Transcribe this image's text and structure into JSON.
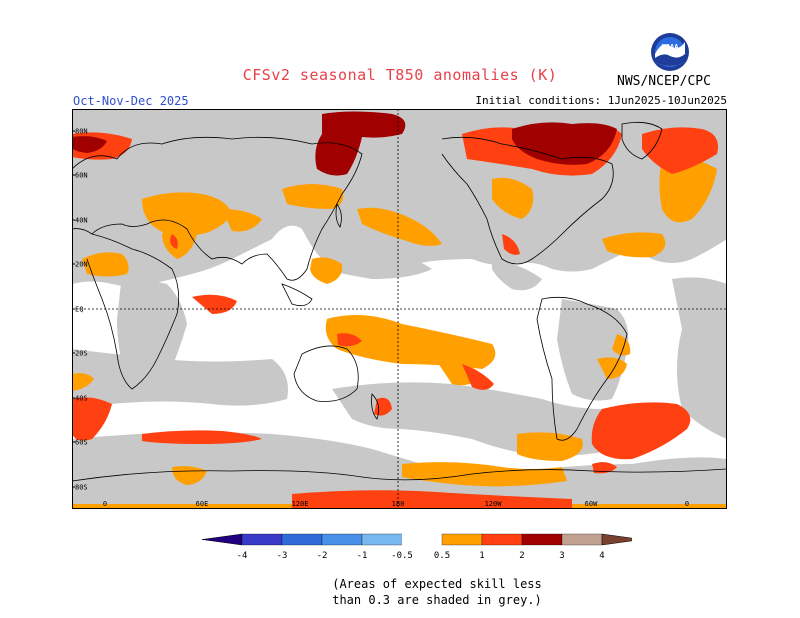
{
  "header": {
    "title": "CFSv2 seasonal T850 anomalies (K)",
    "period": "Oct-Nov-Dec 2025",
    "initial_conditions": "Initial conditions: 1Jun2025-10Jun2025",
    "agency": "NWS/NCEP/CPC",
    "logo_text": "NOAA"
  },
  "map": {
    "lat_labels": [
      "80N",
      "60N",
      "40N",
      "20N",
      "EQ",
      "20S",
      "40S",
      "60S",
      "80S"
    ],
    "lon_labels": [
      "0",
      "60E",
      "120E",
      "180",
      "120W",
      "60W",
      "0"
    ],
    "colors": {
      "low_skill_grey": "#c8c8c8",
      "frame": "#000000"
    }
  },
  "colorbar": {
    "tick_labels": [
      "-4",
      "-3",
      "-2",
      "-1",
      "-0.5",
      "0.5",
      "1",
      "2",
      "3",
      "4"
    ],
    "bins": [
      {
        "color": "#200080"
      },
      {
        "color": "#3a3ac8"
      },
      {
        "color": "#2f6ad8"
      },
      {
        "color": "#4890e8"
      },
      {
        "color": "#78b8f0"
      },
      {
        "color": "#ffffff"
      },
      {
        "color": "#ff9f00"
      },
      {
        "color": "#ff4010"
      },
      {
        "color": "#a00000"
      },
      {
        "color": "#c0a090"
      },
      {
        "color": "#7a4030"
      }
    ]
  },
  "note": {
    "line1": "(Areas of expected skill less",
    "line2": "than 0.3 are shaded in grey.)"
  }
}
